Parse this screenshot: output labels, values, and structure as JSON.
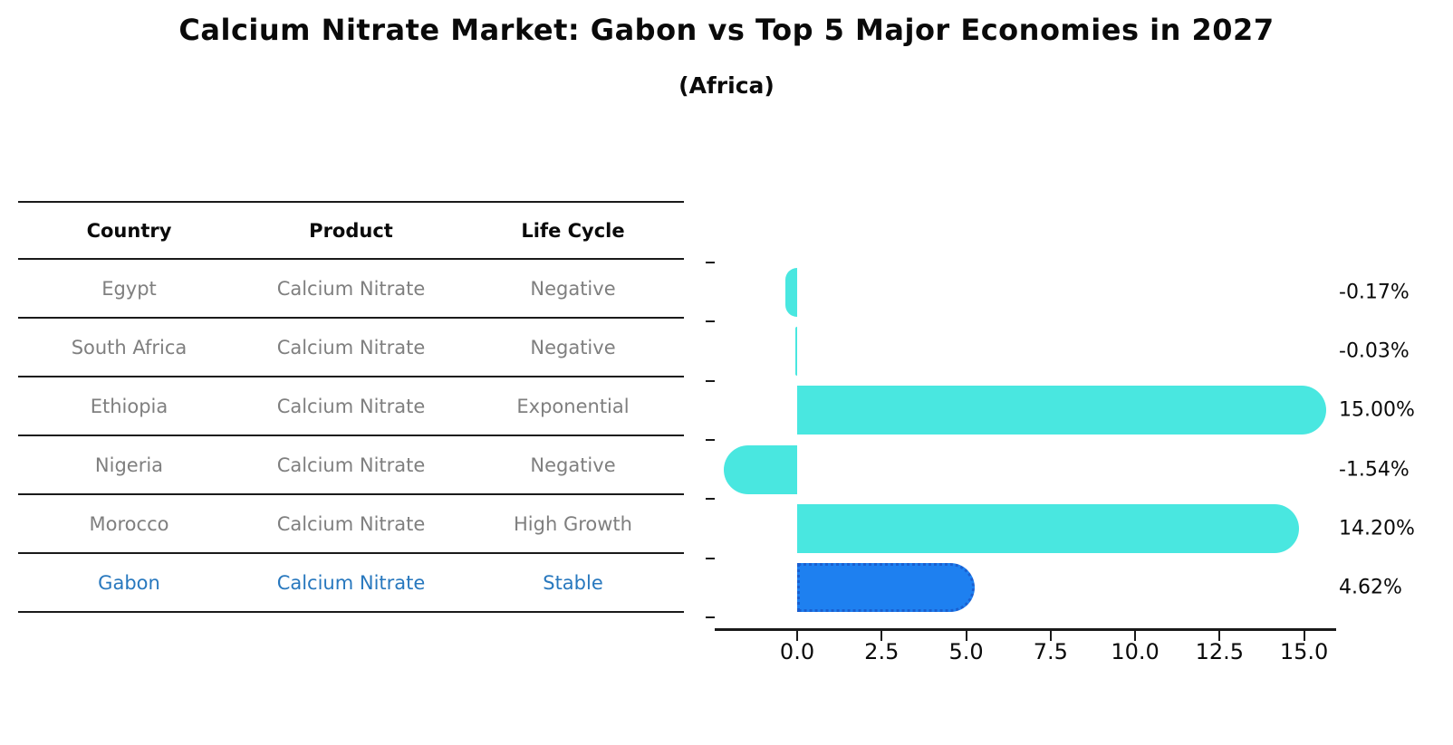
{
  "title": "Calcium Nitrate Market: Gabon vs Top 5 Major Economies in 2027",
  "subtitle": "(Africa)",
  "table": {
    "headers": [
      "Country",
      "Product",
      "Life Cycle"
    ],
    "rows": [
      {
        "country": "Egypt",
        "product": "Calcium Nitrate",
        "life_cycle": "Negative",
        "highlight": false
      },
      {
        "country": "South Africa",
        "product": "Calcium Nitrate",
        "life_cycle": "Negative",
        "highlight": false
      },
      {
        "country": "Ethiopia",
        "product": "Calcium Nitrate",
        "life_cycle": "Exponential",
        "highlight": false
      },
      {
        "country": "Nigeria",
        "product": "Calcium Nitrate",
        "life_cycle": "Negative",
        "highlight": false
      },
      {
        "country": "Morocco",
        "product": "Calcium Nitrate",
        "life_cycle": "High Growth",
        "highlight": false
      },
      {
        "country": "Gabon",
        "product": "Calcium Nitrate",
        "life_cycle": "Stable",
        "highlight": true
      }
    ]
  },
  "chart_data": {
    "type": "bar",
    "orientation": "horizontal",
    "title": "Calcium Nitrate Market: Gabon vs Top 5 Major Economies in 2027 (Africa)",
    "categories": [
      "Egypt",
      "South Africa",
      "Ethiopia",
      "Nigeria",
      "Morocco",
      "Gabon"
    ],
    "values": [
      -0.17,
      -0.03,
      15.0,
      -1.54,
      14.2,
      4.62
    ],
    "value_labels": [
      "-0.17%",
      "-0.03%",
      "15.00%",
      "-1.54%",
      "14.20%",
      "4.62%"
    ],
    "x_tick_labels": [
      "0.0",
      "2.5",
      "5.0",
      "7.5",
      "10.0",
      "12.5",
      "15.0"
    ],
    "x_tick_values": [
      0,
      2.5,
      5,
      7.5,
      10,
      12.5,
      15
    ],
    "xlim": [
      -2.44,
      15.95
    ],
    "grid": false,
    "legend": "none",
    "highlight_category": "Gabon",
    "colors": {
      "bar_default": "#49e7e0",
      "bar_highlight": "#1e80f0",
      "bar_highlight_border": "#1a5fd0",
      "highlight_text": "#2878be",
      "table_text": "#7f7f7f",
      "axis": "#1a1a1a",
      "label_text": "#0a0a0a"
    }
  }
}
